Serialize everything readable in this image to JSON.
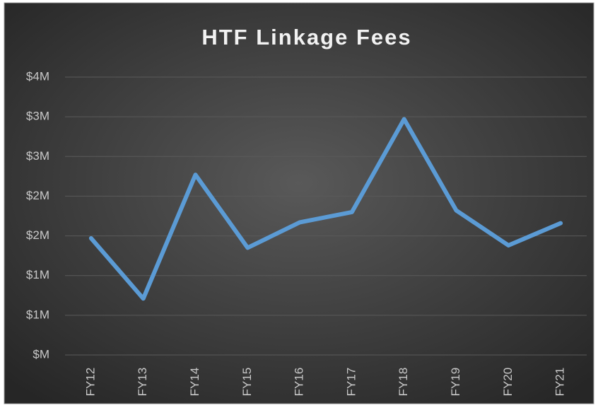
{
  "chart_data": {
    "type": "line",
    "title": "HTF Linkage Fees",
    "categories": [
      "FY12",
      "FY13",
      "FY14",
      "FY15",
      "FY16",
      "FY17",
      "FY18",
      "FY19",
      "FY20",
      "FY21"
    ],
    "series": [
      {
        "name": "HTF Linkage Fees",
        "color": "#5b9bd5",
        "values": [
          1470000,
          710000,
          2270000,
          1350000,
          1670000,
          1800000,
          2970000,
          1820000,
          1380000,
          1660000
        ]
      }
    ],
    "ylim": [
      0,
      3500000
    ],
    "yticks": [
      {
        "value": 0,
        "label": "$M"
      },
      {
        "value": 500000,
        "label": "$1M"
      },
      {
        "value": 1000000,
        "label": "$1M"
      },
      {
        "value": 1500000,
        "label": "$2M"
      },
      {
        "value": 2000000,
        "label": "$2M"
      },
      {
        "value": 2500000,
        "label": "$3M"
      },
      {
        "value": 3000000,
        "label": "$3M"
      },
      {
        "value": 3500000,
        "label": "$4M"
      }
    ],
    "grid": true
  }
}
